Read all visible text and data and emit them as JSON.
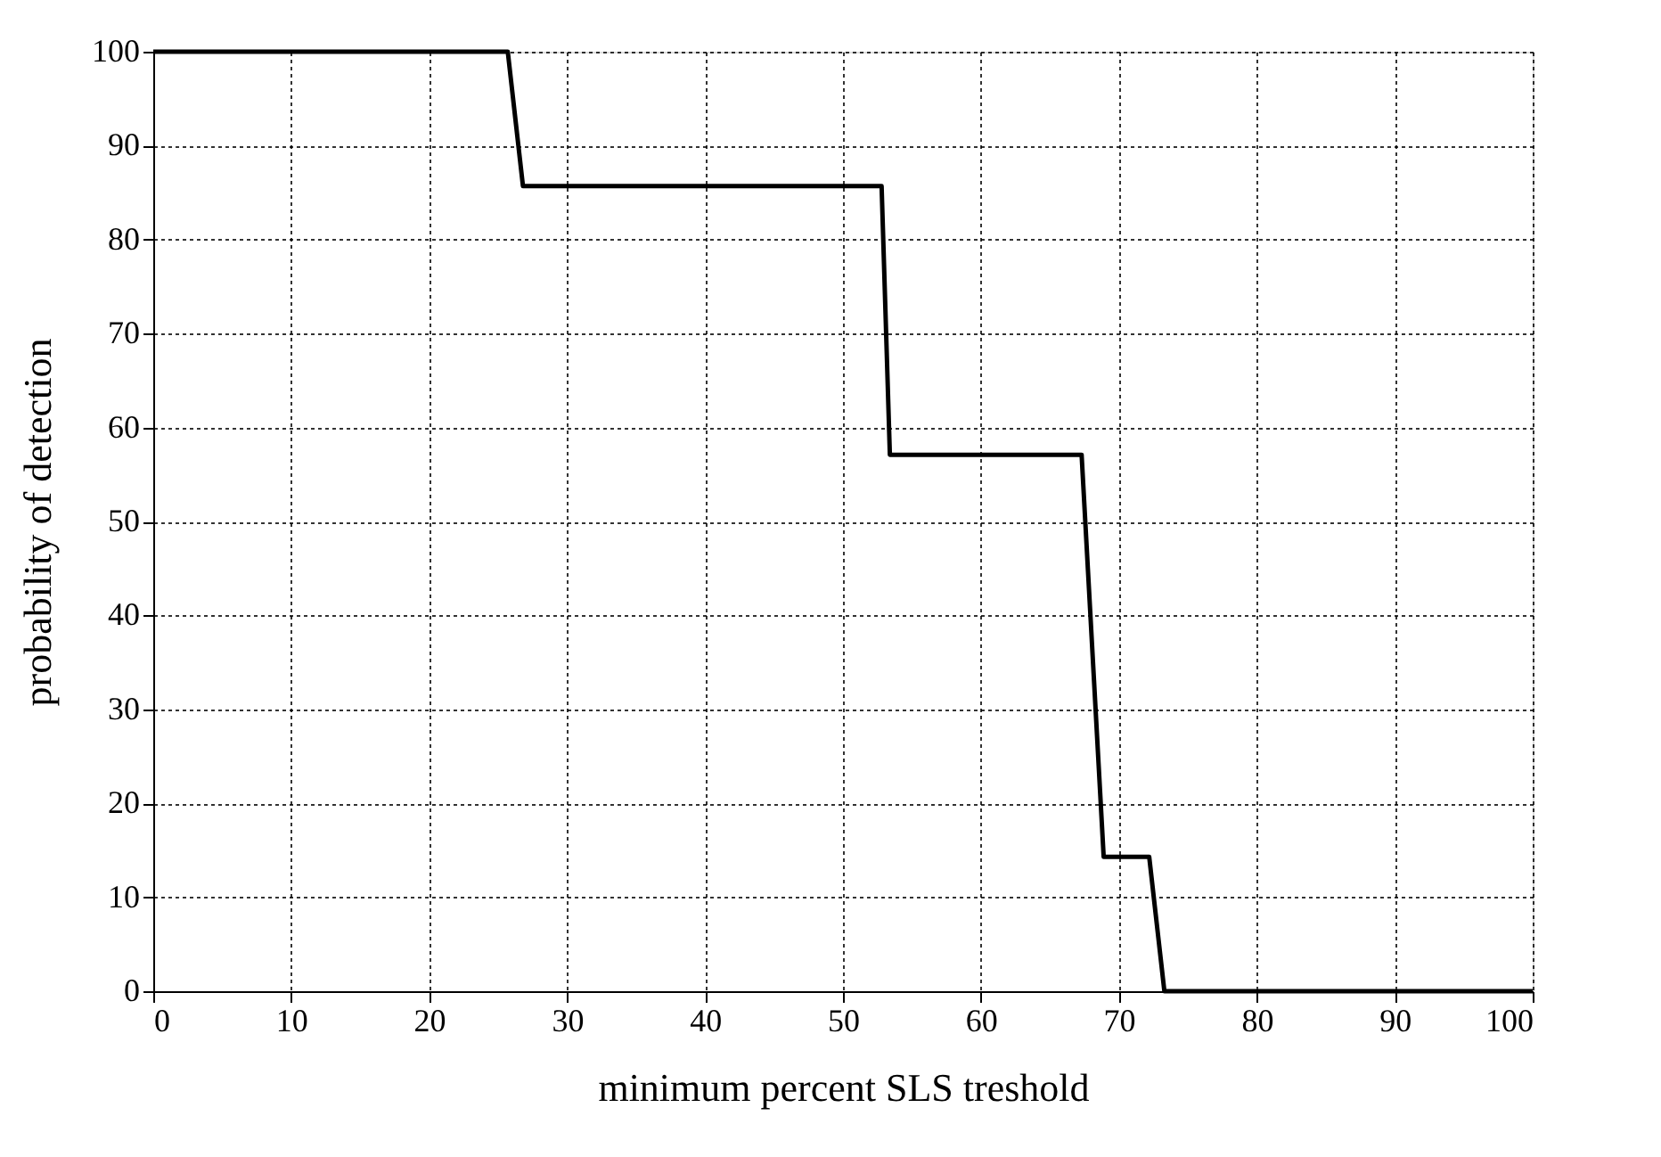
{
  "chart_data": {
    "type": "line",
    "xlabel": "minimum percent SLS treshold",
    "ylabel": "probability of detection",
    "x": [
      0,
      25.7,
      26.8,
      52.8,
      53.4,
      67.3,
      68.9,
      72.2,
      73.3,
      100
    ],
    "series": [
      {
        "color": "#000000",
        "values": [
          100,
          100,
          85.7,
          85.7,
          57.1,
          57.1,
          14.3,
          14.3,
          0,
          0
        ]
      }
    ],
    "xlim": [
      0,
      100
    ],
    "ylim": [
      0,
      100
    ],
    "xticks": [
      0,
      10,
      20,
      30,
      40,
      50,
      60,
      70,
      80,
      90,
      100
    ],
    "yticks": [
      0,
      10,
      20,
      30,
      40,
      50,
      60,
      70,
      80,
      90,
      100
    ],
    "grid": true,
    "legend": false,
    "marker": "none",
    "line_style": "solid"
  }
}
